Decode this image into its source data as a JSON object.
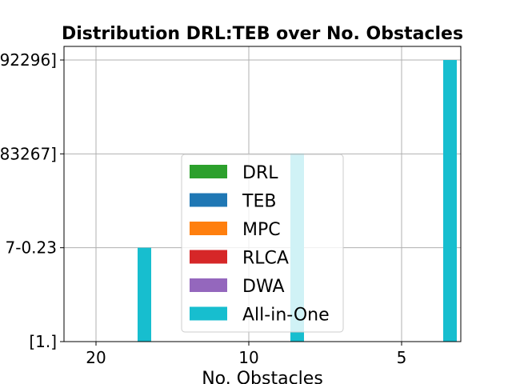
{
  "chart_data": {
    "type": "bar",
    "title": "Distribution DRL:TEB over No. Obstacles",
    "xlabel": "No. Obstacles",
    "ylabel": "",
    "categories": [
      "20",
      "10",
      "5"
    ],
    "y_tick_labels": [
      "[1.]",
      "7-0.23",
      "83267]",
      "92296]"
    ],
    "ylim": [
      0,
      3
    ],
    "grid": true,
    "legend_position": "center",
    "series": [
      {
        "name": "DRL",
        "color": "#2ca02c",
        "values": [
          0,
          0,
          0
        ]
      },
      {
        "name": "TEB",
        "color": "#1f77b4",
        "values": [
          0,
          0,
          0
        ]
      },
      {
        "name": "MPC",
        "color": "#ff7f0e",
        "values": [
          0,
          0,
          0
        ]
      },
      {
        "name": "RLCA",
        "color": "#d62728",
        "values": [
          0,
          0,
          0
        ]
      },
      {
        "name": "DWA",
        "color": "#9467bd",
        "values": [
          0,
          0,
          0
        ]
      },
      {
        "name": "All-in-One",
        "color": "#17becf",
        "values": [
          1,
          2,
          3
        ]
      }
    ]
  }
}
